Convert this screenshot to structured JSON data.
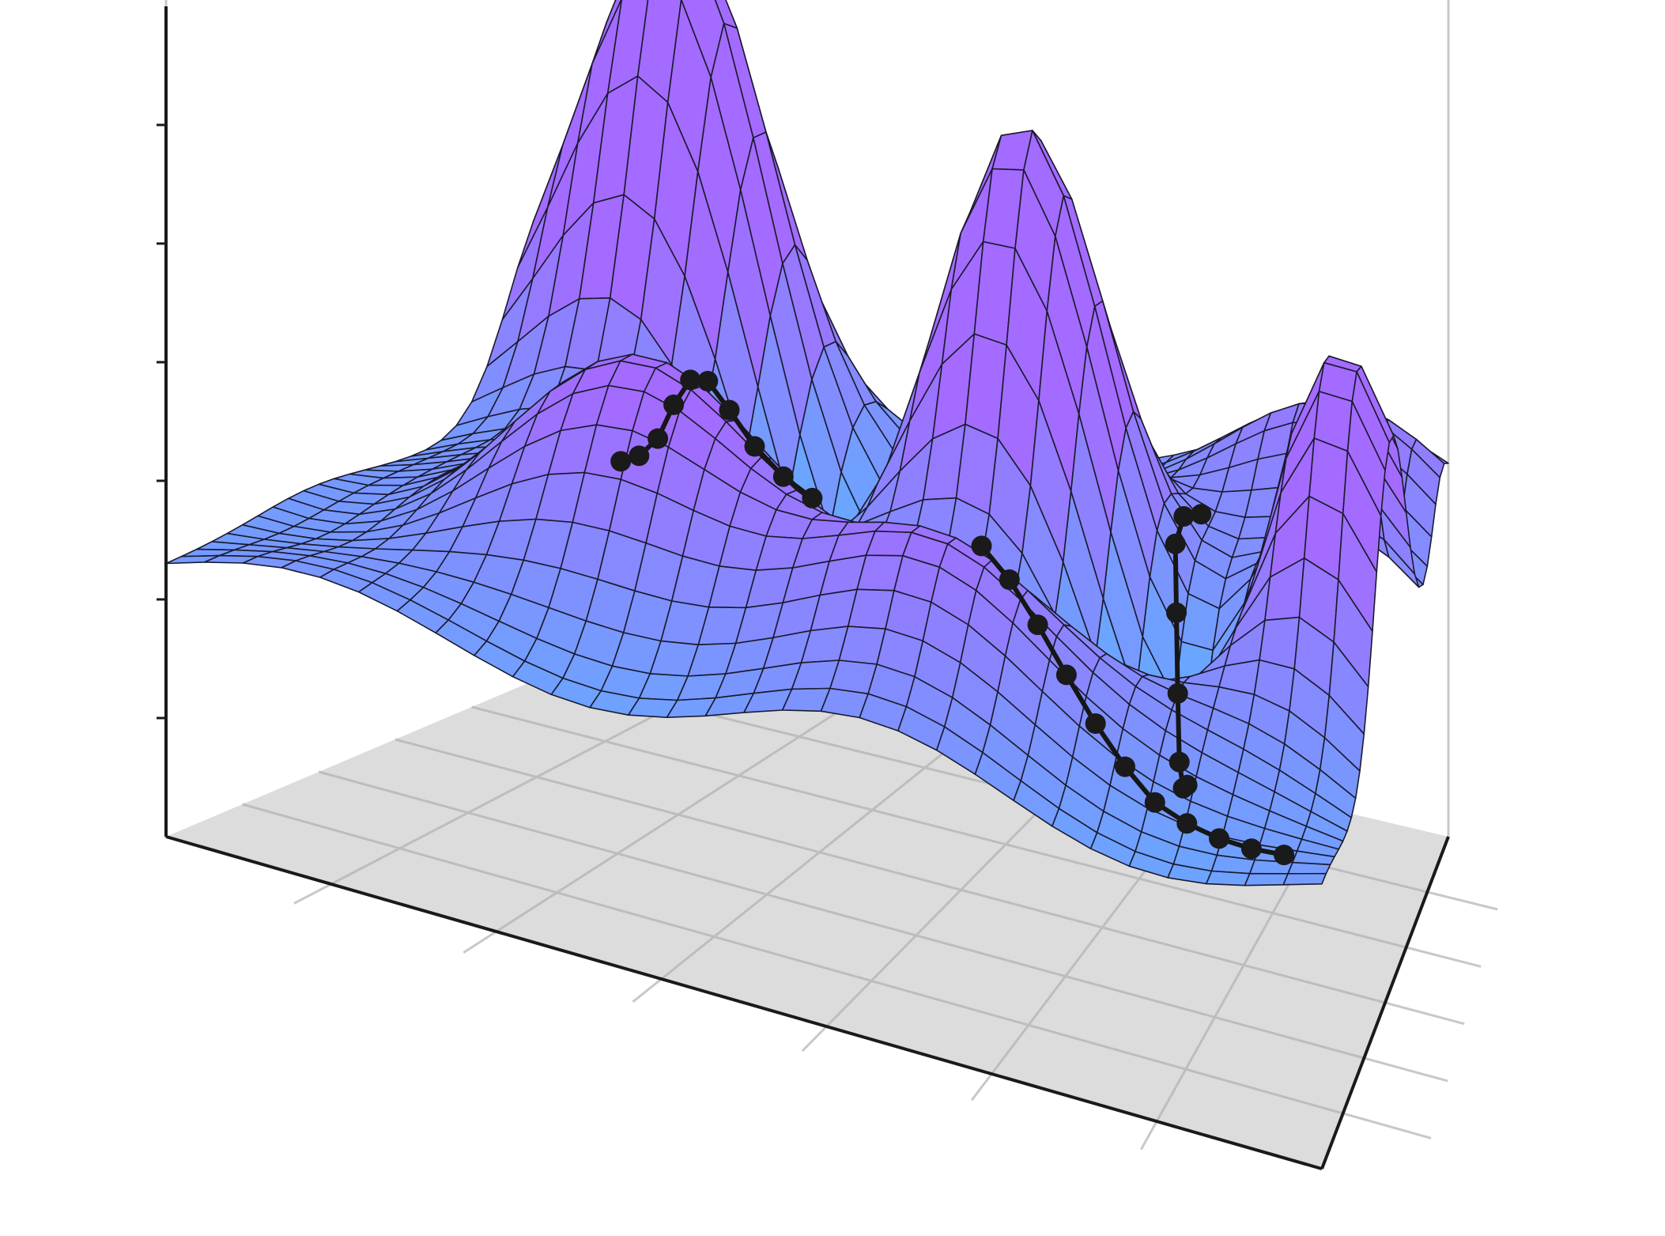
{
  "chart_data": {
    "type": "surface3d",
    "title": "",
    "xlabel": "",
    "ylabel": "",
    "zlabel": "",
    "x_range": [
      0,
      10
    ],
    "y_range": [
      0,
      10
    ],
    "z_range": [
      -1,
      2.5
    ],
    "grid": true,
    "legend": "none",
    "tick_labels_shown": false,
    "colormap": {
      "low": "#6aa6ff",
      "high": "#a36bff",
      "grid_line": "#1a1a2e"
    },
    "floor_color": "#dcdcdc",
    "axis_color": "#1a1a1a",
    "guide_color": "#c8c8c8",
    "surface_terms": [
      {
        "x": 1.4,
        "y": 8.4,
        "height": 2.3,
        "sx": 1.0,
        "sy": 0.9
      },
      {
        "x": 5.8,
        "y": 6.8,
        "height": 2.0,
        "sx": 0.9,
        "sy": 1.0
      },
      {
        "x": 9.3,
        "y": 5.4,
        "height": 1.7,
        "sx": 0.8,
        "sy": 1.2
      },
      {
        "x": 3.0,
        "y": 3.2,
        "height": 0.9,
        "sx": 1.3,
        "sy": 1.2
      },
      {
        "x": 6.2,
        "y": 2.2,
        "height": 0.8,
        "sx": 1.1,
        "sy": 1.0
      },
      {
        "x": 4.0,
        "y": 7.4,
        "height": -1.0,
        "sx": 1.0,
        "sy": 0.9
      },
      {
        "x": 8.0,
        "y": 5.2,
        "height": -0.9,
        "sx": 0.8,
        "sy": 0.9
      },
      {
        "x": 9.0,
        "y": 9.5,
        "height": 0.6,
        "sx": 1.6,
        "sy": 0.9
      }
    ],
    "surface_base": 0.15,
    "paths": [
      {
        "points": [
          [
            2.2,
            5.2
          ],
          [
            2.5,
            4.9
          ],
          [
            2.8,
            4.6
          ],
          [
            3.1,
            4.2
          ],
          [
            3.4,
            3.8
          ],
          [
            3.7,
            3.4
          ],
          [
            4.0,
            3.1
          ],
          [
            4.3,
            2.9
          ],
          [
            4.6,
            2.8
          ],
          [
            4.9,
            2.7
          ]
        ]
      },
      {
        "points": [
          [
            7.6,
            7.6
          ],
          [
            7.5,
            7.2
          ],
          [
            7.5,
            6.8
          ],
          [
            7.6,
            6.4
          ],
          [
            7.7,
            6.0
          ],
          [
            7.8,
            5.6
          ],
          [
            7.9,
            5.3
          ],
          [
            8.0,
            5.0
          ]
        ]
      },
      {
        "points": [
          [
            6.6,
            2.2
          ],
          [
            6.9,
            2.0
          ],
          [
            7.2,
            1.8
          ],
          [
            7.5,
            1.6
          ],
          [
            7.8,
            1.4
          ],
          [
            8.1,
            1.2
          ],
          [
            8.4,
            1.0
          ],
          [
            8.7,
            0.9
          ],
          [
            9.0,
            0.8
          ],
          [
            9.3,
            0.7
          ],
          [
            9.6,
            0.6
          ]
        ]
      }
    ]
  }
}
